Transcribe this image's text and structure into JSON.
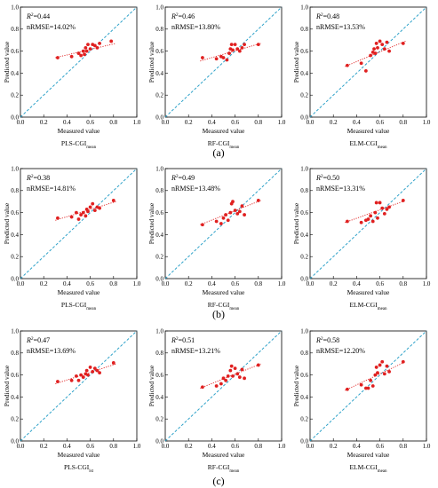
{
  "figure": {
    "panel_labels": [
      "(a)",
      "(b)",
      "(c)"
    ]
  },
  "colors": {
    "diagonal": "#2aa0c8",
    "fit": "#e02020",
    "points": "#e02020"
  },
  "chart_data": [
    {
      "type": "scatter",
      "row": 0,
      "col": 0,
      "r2_label": "R",
      "r2_value": "=0.44",
      "nrmse": "nRMSE=14.02%",
      "caption_main": "PLS-CGI",
      "caption_sub": "mean",
      "xlabel": "Measured value",
      "ylabel": "Predicted value",
      "xlim": [
        0,
        1
      ],
      "ylim": [
        0,
        1
      ],
      "xticks": [
        "0.0",
        "0.2",
        "0.4",
        "0.6",
        "0.8",
        "1.0"
      ],
      "yticks": [
        "0.0",
        "0.2",
        "0.4",
        "0.6",
        "0.8",
        "1.0"
      ],
      "fit": [
        [
          0.3,
          0.54
        ],
        [
          0.82,
          0.67
        ]
      ],
      "points": [
        [
          0.32,
          0.54
        ],
        [
          0.44,
          0.55
        ],
        [
          0.5,
          0.58
        ],
        [
          0.52,
          0.56
        ],
        [
          0.54,
          0.6
        ],
        [
          0.55,
          0.57
        ],
        [
          0.56,
          0.63
        ],
        [
          0.57,
          0.6
        ],
        [
          0.58,
          0.66
        ],
        [
          0.6,
          0.62
        ],
        [
          0.62,
          0.66
        ],
        [
          0.64,
          0.65
        ],
        [
          0.66,
          0.63
        ],
        [
          0.68,
          0.67
        ],
        [
          0.78,
          0.69
        ]
      ]
    },
    {
      "type": "scatter",
      "row": 0,
      "col": 1,
      "r2_label": "R",
      "r2_value": "=0.46",
      "nrmse": "nRMSE=13.80%",
      "caption_main": "RF-CGI",
      "caption_sub": "mean",
      "xlabel": "Measured value",
      "ylabel": "Predicted value",
      "xlim": [
        0,
        1
      ],
      "ylim": [
        0,
        1
      ],
      "xticks": [
        "0.0",
        "0.2",
        "0.4",
        "0.6",
        "0.8",
        "1.0"
      ],
      "yticks": [
        "0.0",
        "0.2",
        "0.4",
        "0.6",
        "0.8",
        "1.0"
      ],
      "fit": [
        [
          0.3,
          0.51
        ],
        [
          0.82,
          0.67
        ]
      ],
      "points": [
        [
          0.32,
          0.54
        ],
        [
          0.44,
          0.53
        ],
        [
          0.48,
          0.55
        ],
        [
          0.5,
          0.54
        ],
        [
          0.53,
          0.52
        ],
        [
          0.55,
          0.58
        ],
        [
          0.56,
          0.62
        ],
        [
          0.57,
          0.66
        ],
        [
          0.58,
          0.61
        ],
        [
          0.6,
          0.66
        ],
        [
          0.62,
          0.62
        ],
        [
          0.64,
          0.6
        ],
        [
          0.66,
          0.63
        ],
        [
          0.68,
          0.66
        ],
        [
          0.8,
          0.66
        ]
      ]
    },
    {
      "type": "scatter",
      "row": 0,
      "col": 2,
      "r2_label": "R",
      "r2_value": "=0.48",
      "nrmse": "nRMSE=13.53%",
      "caption_main": "ELM-CGI",
      "caption_sub": "mean",
      "xlabel": "Measured value",
      "ylabel": "Predicted value",
      "xlim": [
        0,
        1
      ],
      "ylim": [
        0,
        1
      ],
      "xticks": [
        "0.0",
        "0.2",
        "0.4",
        "0.6",
        "0.8",
        "1.0"
      ],
      "yticks": [
        "0.0",
        "0.2",
        "0.4",
        "0.6",
        "0.8",
        "1.0"
      ],
      "fit": [
        [
          0.3,
          0.46
        ],
        [
          0.82,
          0.69
        ]
      ],
      "points": [
        [
          0.32,
          0.47
        ],
        [
          0.44,
          0.49
        ],
        [
          0.48,
          0.42
        ],
        [
          0.52,
          0.56
        ],
        [
          0.54,
          0.59
        ],
        [
          0.55,
          0.62
        ],
        [
          0.56,
          0.58
        ],
        [
          0.57,
          0.67
        ],
        [
          0.58,
          0.63
        ],
        [
          0.6,
          0.69
        ],
        [
          0.62,
          0.66
        ],
        [
          0.64,
          0.62
        ],
        [
          0.66,
          0.68
        ],
        [
          0.68,
          0.6
        ],
        [
          0.8,
          0.67
        ]
      ]
    },
    {
      "type": "scatter",
      "row": 1,
      "col": 0,
      "r2_label": "R",
      "r2_value": "=0.38",
      "nrmse": "nRMSE=14.81%",
      "caption_main": "PLS-CGI",
      "caption_sub": "mean",
      "xlabel": "Measured value",
      "ylabel": "Predicted value",
      "xlim": [
        0,
        1
      ],
      "ylim": [
        0,
        1
      ],
      "xticks": [
        "0.0",
        "0.2",
        "0.4",
        "0.6",
        "0.8",
        "1.0"
      ],
      "yticks": [
        "0.0",
        "0.2",
        "0.4",
        "0.6",
        "0.8",
        "1.0"
      ],
      "fit": [
        [
          0.3,
          0.53
        ],
        [
          0.82,
          0.7
        ]
      ],
      "points": [
        [
          0.32,
          0.55
        ],
        [
          0.44,
          0.56
        ],
        [
          0.48,
          0.6
        ],
        [
          0.5,
          0.54
        ],
        [
          0.52,
          0.58
        ],
        [
          0.54,
          0.6
        ],
        [
          0.56,
          0.57
        ],
        [
          0.57,
          0.63
        ],
        [
          0.58,
          0.61
        ],
        [
          0.6,
          0.65
        ],
        [
          0.62,
          0.68
        ],
        [
          0.64,
          0.62
        ],
        [
          0.66,
          0.65
        ],
        [
          0.68,
          0.64
        ],
        [
          0.8,
          0.71
        ]
      ]
    },
    {
      "type": "scatter",
      "row": 1,
      "col": 1,
      "r2_label": "R",
      "r2_value": "=0.49",
      "nrmse": "nRMSE=13.48%",
      "caption_main": "RF-CGI",
      "caption_sub": "mean",
      "xlabel": "Measured value",
      "ylabel": "Predicted value",
      "xlim": [
        0,
        1
      ],
      "ylim": [
        0,
        1
      ],
      "xticks": [
        "0.0",
        "0.2",
        "0.4",
        "0.6",
        "0.8",
        "1.0"
      ],
      "yticks": [
        "0.0",
        "0.2",
        "0.4",
        "0.6",
        "0.8",
        "1.0"
      ],
      "fit": [
        [
          0.3,
          0.49
        ],
        [
          0.82,
          0.71
        ]
      ],
      "points": [
        [
          0.32,
          0.49
        ],
        [
          0.44,
          0.52
        ],
        [
          0.48,
          0.5
        ],
        [
          0.5,
          0.55
        ],
        [
          0.52,
          0.58
        ],
        [
          0.54,
          0.53
        ],
        [
          0.56,
          0.6
        ],
        [
          0.57,
          0.68
        ],
        [
          0.58,
          0.7
        ],
        [
          0.6,
          0.62
        ],
        [
          0.62,
          0.59
        ],
        [
          0.64,
          0.61
        ],
        [
          0.66,
          0.66
        ],
        [
          0.68,
          0.58
        ],
        [
          0.8,
          0.71
        ]
      ]
    },
    {
      "type": "scatter",
      "row": 1,
      "col": 2,
      "r2_label": "R",
      "r2_value": "=0.50",
      "nrmse": "nRMSE=13.31%",
      "caption_main": "ELM-CGI",
      "caption_sub": "mean",
      "xlabel": "Measured value",
      "ylabel": "Predicted value",
      "xlim": [
        0,
        1
      ],
      "ylim": [
        0,
        1
      ],
      "xticks": [
        "0.0",
        "0.2",
        "0.4",
        "0.6",
        "0.8",
        "1.0"
      ],
      "yticks": [
        "0.0",
        "0.2",
        "0.4",
        "0.6",
        "0.8",
        "1.0"
      ],
      "fit": [
        [
          0.3,
          0.51
        ],
        [
          0.82,
          0.71
        ]
      ],
      "points": [
        [
          0.32,
          0.52
        ],
        [
          0.44,
          0.51
        ],
        [
          0.48,
          0.53
        ],
        [
          0.5,
          0.54
        ],
        [
          0.52,
          0.57
        ],
        [
          0.54,
          0.52
        ],
        [
          0.56,
          0.6
        ],
        [
          0.57,
          0.69
        ],
        [
          0.58,
          0.55
        ],
        [
          0.6,
          0.69
        ],
        [
          0.62,
          0.64
        ],
        [
          0.64,
          0.59
        ],
        [
          0.66,
          0.63
        ],
        [
          0.68,
          0.65
        ],
        [
          0.8,
          0.71
        ]
      ]
    },
    {
      "type": "scatter",
      "row": 2,
      "col": 0,
      "r2_label": "R",
      "r2_value": "=0.47",
      "nrmse": "nRMSE=13.69%",
      "caption_main": "PLS-CGI",
      "caption_sub": "lst",
      "xlabel": "Measured value",
      "ylabel": "Predicted value",
      "xlim": [
        0,
        1
      ],
      "ylim": [
        0,
        1
      ],
      "xticks": [
        "0.0",
        "0.2",
        "0.4",
        "0.6",
        "0.8",
        "1.0"
      ],
      "yticks": [
        "0.0",
        "0.2",
        "0.4",
        "0.6",
        "0.8",
        "1.0"
      ],
      "fit": [
        [
          0.3,
          0.52
        ],
        [
          0.82,
          0.7
        ]
      ],
      "points": [
        [
          0.32,
          0.54
        ],
        [
          0.44,
          0.55
        ],
        [
          0.48,
          0.59
        ],
        [
          0.5,
          0.55
        ],
        [
          0.52,
          0.6
        ],
        [
          0.54,
          0.58
        ],
        [
          0.56,
          0.61
        ],
        [
          0.57,
          0.64
        ],
        [
          0.58,
          0.6
        ],
        [
          0.6,
          0.67
        ],
        [
          0.62,
          0.63
        ],
        [
          0.64,
          0.66
        ],
        [
          0.66,
          0.64
        ],
        [
          0.68,
          0.62
        ],
        [
          0.8,
          0.71
        ]
      ]
    },
    {
      "type": "scatter",
      "row": 2,
      "col": 1,
      "r2_label": "R",
      "r2_value": "=0.51",
      "nrmse": "nRMSE=13.21%",
      "caption_main": "RF-CGI",
      "caption_sub": "mean",
      "xlabel": "Measured value",
      "ylabel": "Predicted value",
      "xlim": [
        0,
        1
      ],
      "ylim": [
        0,
        1
      ],
      "xticks": [
        "0.0",
        "0.2",
        "0.4",
        "0.6",
        "0.8",
        "1.0"
      ],
      "yticks": [
        "0.0",
        "0.2",
        "0.4",
        "0.6",
        "0.8",
        "1.0"
      ],
      "fit": [
        [
          0.3,
          0.48
        ],
        [
          0.82,
          0.7
        ]
      ],
      "points": [
        [
          0.32,
          0.49
        ],
        [
          0.44,
          0.5
        ],
        [
          0.48,
          0.52
        ],
        [
          0.5,
          0.57
        ],
        [
          0.52,
          0.55
        ],
        [
          0.54,
          0.59
        ],
        [
          0.56,
          0.64
        ],
        [
          0.57,
          0.68
        ],
        [
          0.58,
          0.59
        ],
        [
          0.6,
          0.66
        ],
        [
          0.62,
          0.61
        ],
        [
          0.64,
          0.58
        ],
        [
          0.66,
          0.65
        ],
        [
          0.68,
          0.57
        ],
        [
          0.8,
          0.69
        ]
      ]
    },
    {
      "type": "scatter",
      "row": 2,
      "col": 2,
      "r2_label": "R",
      "r2_value": "=0.58",
      "nrmse": "nRMSE=12.20%",
      "caption_main": "ELM-CGI",
      "caption_sub": "mean",
      "xlabel": "Measured value",
      "ylabel": "Predicted value",
      "xlim": [
        0,
        1
      ],
      "ylim": [
        0,
        1
      ],
      "xticks": [
        "0.0",
        "0.2",
        "0.4",
        "0.6",
        "0.8",
        "1.0"
      ],
      "yticks": [
        "0.0",
        "0.2",
        "0.4",
        "0.6",
        "0.8",
        "1.0"
      ],
      "fit": [
        [
          0.3,
          0.46
        ],
        [
          0.82,
          0.72
        ]
      ],
      "points": [
        [
          0.32,
          0.47
        ],
        [
          0.44,
          0.51
        ],
        [
          0.48,
          0.48
        ],
        [
          0.5,
          0.48
        ],
        [
          0.52,
          0.55
        ],
        [
          0.54,
          0.5
        ],
        [
          0.56,
          0.6
        ],
        [
          0.57,
          0.67
        ],
        [
          0.58,
          0.62
        ],
        [
          0.6,
          0.69
        ],
        [
          0.62,
          0.72
        ],
        [
          0.64,
          0.61
        ],
        [
          0.66,
          0.68
        ],
        [
          0.68,
          0.63
        ],
        [
          0.8,
          0.72
        ]
      ]
    }
  ]
}
